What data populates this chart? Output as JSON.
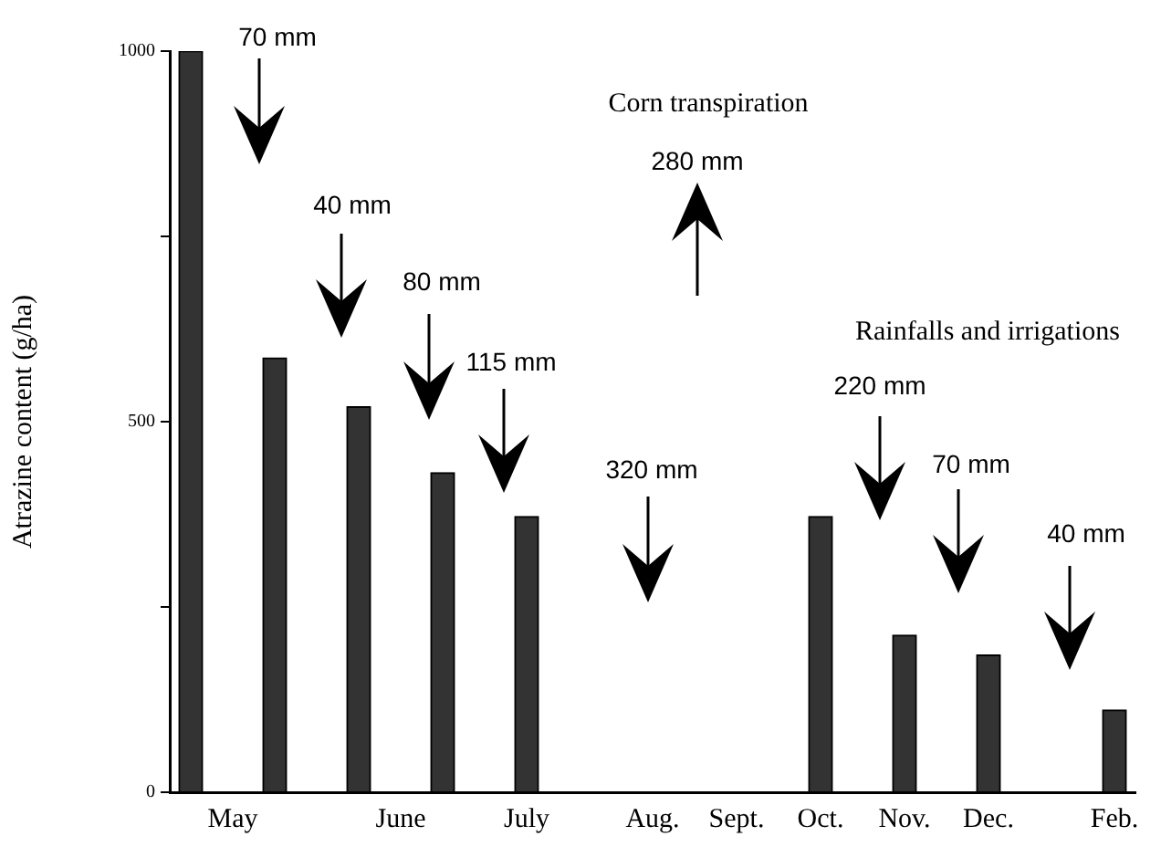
{
  "chart_data": {
    "type": "bar",
    "ylabel": "Atrazine content (g/ha)",
    "categories": [
      null,
      "May",
      null,
      null,
      null,
      "June",
      null,
      null,
      "July",
      null,
      null,
      "Aug.",
      null,
      "Sept.",
      null,
      "Oct.",
      null,
      "Nov.",
      null,
      "Dec.",
      null,
      null,
      "Feb."
    ],
    "values": [
      1000,
      null,
      586,
      null,
      520,
      null,
      431,
      null,
      372,
      null,
      null,
      null,
      null,
      null,
      null,
      372,
      null,
      212,
      null,
      185,
      null,
      null,
      111
    ],
    "color": "#333333",
    "ylim": [
      0,
      1000
    ],
    "yticks": [
      0,
      {
        "value": 250,
        "label": null
      },
      500,
      {
        "value": 750,
        "label": null
      },
      1000
    ],
    "annotations": [
      "70 mm",
      "40 mm",
      "80 mm",
      "115 mm",
      "Corn transpiration",
      "280 mm",
      "320 mm",
      "Rainfalls and irrigations",
      "220 mm",
      "70 mm",
      "40 mm"
    ]
  }
}
